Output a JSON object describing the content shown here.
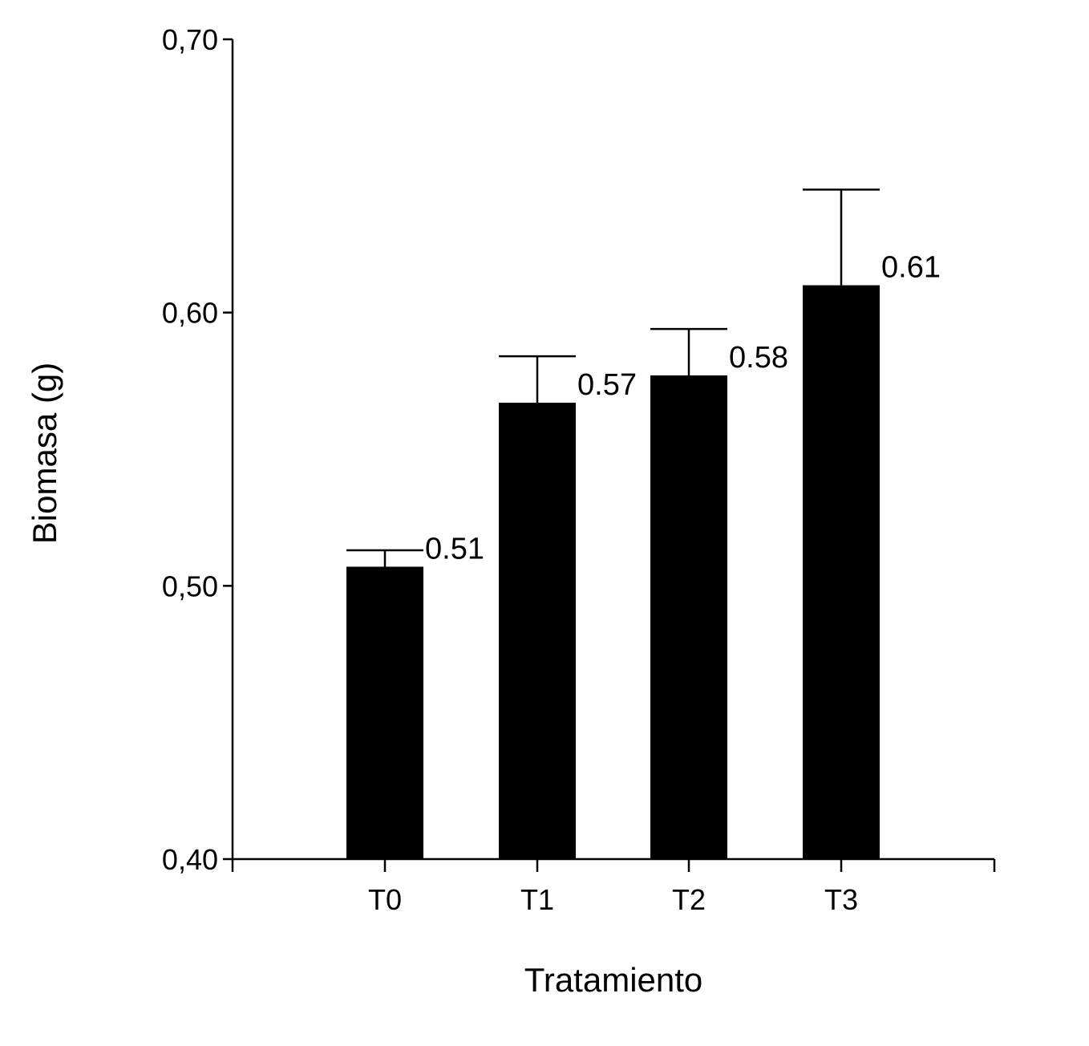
{
  "chart_data": {
    "type": "bar",
    "categories": [
      "T0",
      "T1",
      "T2",
      "T3"
    ],
    "values": [
      0.507,
      0.567,
      0.577,
      0.61
    ],
    "error_upper": [
      0.513,
      0.584,
      0.594,
      0.645
    ],
    "data_labels": [
      "0.51",
      "0.57",
      "0.58",
      "0.61"
    ],
    "xlabel": "Tratamiento",
    "ylabel": "Biomasa (g)",
    "ylim": [
      0.4,
      0.7
    ],
    "y_ticks": [
      0.4,
      0.5,
      0.6,
      0.7
    ],
    "y_tick_labels": [
      "0,40",
      "0,50",
      "0,60",
      "0,70"
    ],
    "grid": false,
    "bar_color": "#000000"
  }
}
